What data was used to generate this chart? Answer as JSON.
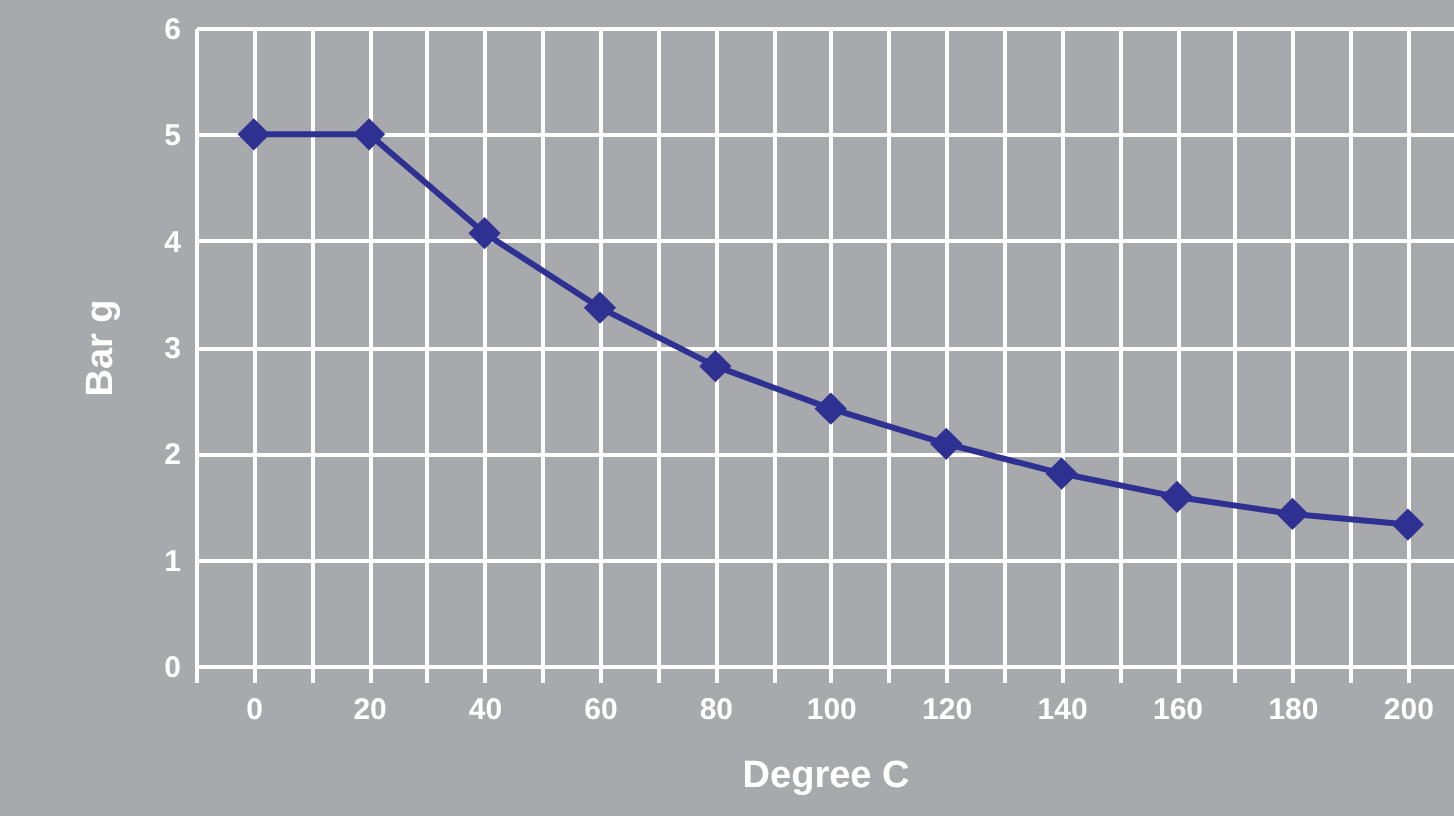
{
  "chart_data": {
    "type": "line",
    "xlabel": "Degree C",
    "ylabel": "Bar g",
    "x": [
      0,
      20,
      40,
      60,
      80,
      100,
      120,
      140,
      160,
      180,
      200
    ],
    "series": [
      {
        "color": "#2e3192",
        "values": [
          5,
          5,
          4.07,
          3.37,
          2.82,
          2.42,
          2.09,
          1.81,
          1.59,
          1.43,
          1.33
        ]
      }
    ],
    "xlim": [
      -10,
      208
    ],
    "xticks": [
      {
        "value": -10,
        "label": null
      },
      0,
      {
        "value": 10,
        "label": null
      },
      20,
      {
        "value": 30,
        "label": null
      },
      40,
      {
        "value": 50,
        "label": null
      },
      60,
      {
        "value": 70,
        "label": null
      },
      80,
      {
        "value": 90,
        "label": null
      },
      100,
      {
        "value": 110,
        "label": null
      },
      120,
      {
        "value": 130,
        "label": null
      },
      140,
      {
        "value": 150,
        "label": null
      },
      160,
      {
        "value": 170,
        "label": null
      },
      180,
      {
        "value": 190,
        "label": null
      },
      200
    ],
    "ylim": [
      0,
      6
    ],
    "yticks": [
      0,
      1,
      2,
      3,
      4,
      5,
      6
    ],
    "grid": true,
    "marker": "diamond",
    "line_style": "solid"
  }
}
